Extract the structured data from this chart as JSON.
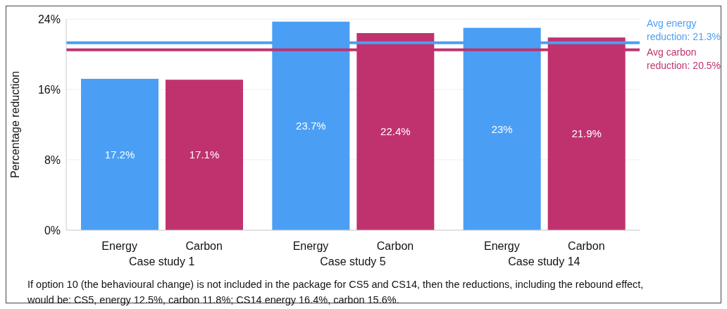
{
  "chart_data": {
    "type": "bar",
    "ylabel": "Percentage reduction",
    "categories": [
      "Case study 1",
      "Case study 5",
      "Case study 14"
    ],
    "series": [
      {
        "name": "Energy",
        "color": "#4a9ff5",
        "values": [
          17.2,
          23.7,
          23
        ],
        "value_labels": [
          "17.2%",
          "23.7%",
          "23%"
        ]
      },
      {
        "name": "Carbon",
        "color": "#c0326e",
        "values": [
          17.1,
          22.4,
          21.9
        ],
        "value_labels": [
          "17.1%",
          "22.4%",
          "21.9%"
        ]
      }
    ],
    "ylim": [
      0,
      24
    ],
    "yticks": [
      {
        "value": 0,
        "label": "0%"
      },
      {
        "value": 8,
        "label": "8%"
      },
      {
        "value": 16,
        "label": "16%"
      },
      {
        "value": 24,
        "label": "24%"
      }
    ],
    "grid": "y",
    "ref_lines": [
      {
        "axis": "y",
        "value": 21.3,
        "label": "Avg energy reduction: 21.3%",
        "color": "#4a9ff5"
      },
      {
        "axis": "y",
        "value": 20.5,
        "label": "Avg carbon reduction: 20.5%",
        "color": "#c0326e"
      }
    ],
    "annotations": [
      "If option 10 (the behavioural change) is not included in the package for CS5 and CS14, then the reductions, including the rebound effect, would be: CS5, energy 12.5%, carbon 11.8%; CS14 energy 16.4%, carbon 15.6%."
    ]
  }
}
